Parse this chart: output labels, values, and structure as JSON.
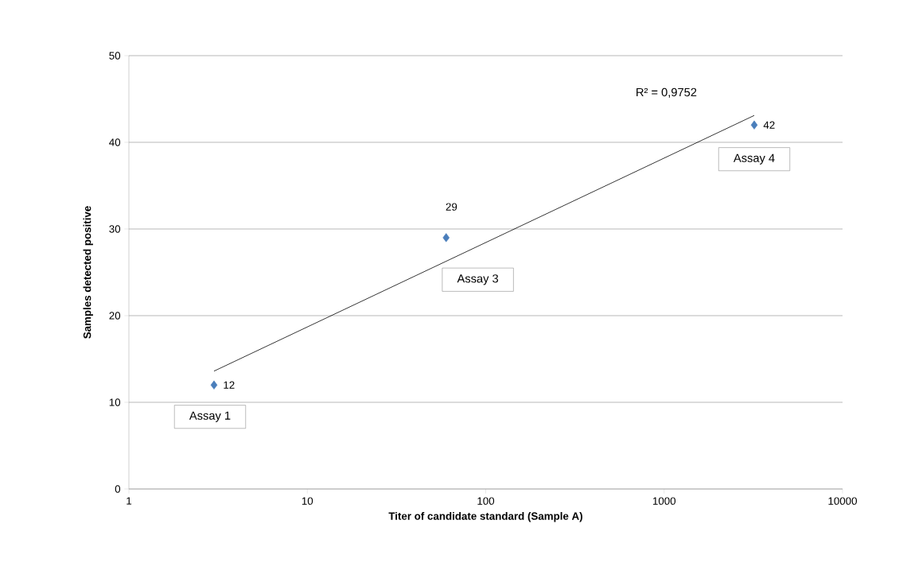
{
  "chart_data": {
    "type": "scatter",
    "xlabel": "Titer of  candidate standard (Sample A)",
    "ylabel": "Samples detected positive",
    "log": "x",
    "xlim": [
      1,
      10000
    ],
    "xticks": [
      1,
      10,
      100,
      1000,
      10000
    ],
    "ylim": [
      0,
      50
    ],
    "yticks": [
      0,
      10,
      20,
      30,
      40,
      50
    ],
    "grid": "y",
    "marker": "diamond",
    "legend": false,
    "series": [
      {
        "color": "#4a7ebb",
        "x": [
          3,
          60,
          3200
        ],
        "values": [
          12,
          29,
          42
        ],
        "value_labels": [
          "12",
          "29",
          "42"
        ]
      },
      {
        "type": "line",
        "color": "#000000",
        "marker": "none",
        "x": [
          3,
          3200
        ],
        "values": [
          13.6,
          43.1
        ]
      }
    ],
    "annotations": [
      {
        "text": "Assay 1",
        "x": 3,
        "y": 12
      },
      "Assay 3",
      {
        "text": "Assay 4",
        "x": 3200,
        "y": 42
      },
      "R² = 0,9752"
    ]
  }
}
